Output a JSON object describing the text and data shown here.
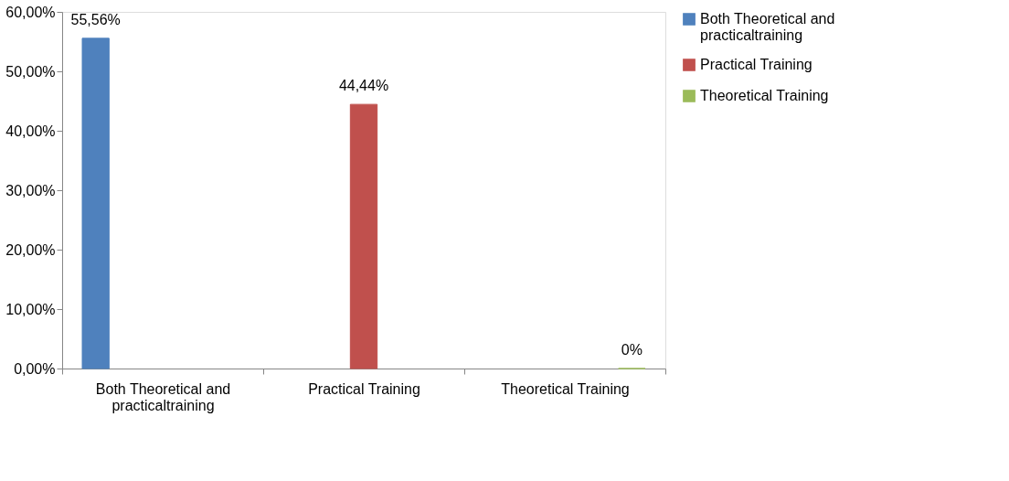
{
  "chart_data": {
    "type": "bar",
    "categories": [
      "Both Theoretical and practicaltraining",
      "Practical Training",
      "Theoretical Training"
    ],
    "series": [
      {
        "name": "Both Theoretical and practicaltraining",
        "color": "#4f81bd",
        "values": [
          55.56,
          null,
          null
        ],
        "value_labels": [
          "55,56%",
          null,
          null
        ]
      },
      {
        "name": "Practical Training",
        "color": "#c0504d",
        "values": [
          null,
          44.44,
          null
        ],
        "value_labels": [
          null,
          "44,44%",
          null
        ]
      },
      {
        "name": "Theoretical Training",
        "color": "#9bbb59",
        "values": [
          null,
          null,
          0
        ],
        "value_labels": [
          null,
          null,
          "0%"
        ]
      }
    ],
    "ylim": [
      0,
      60
    ],
    "yticks": [
      {
        "value": 0,
        "label": "0,00%"
      },
      {
        "value": 10,
        "label": "10,00%"
      },
      {
        "value": 20,
        "label": "20,00%"
      },
      {
        "value": 30,
        "label": "30,00%"
      },
      {
        "value": 40,
        "label": "40,00%"
      },
      {
        "value": 50,
        "label": "50,00%"
      },
      {
        "value": 60,
        "label": "60,00%"
      }
    ],
    "grid": false,
    "legend": "right"
  }
}
